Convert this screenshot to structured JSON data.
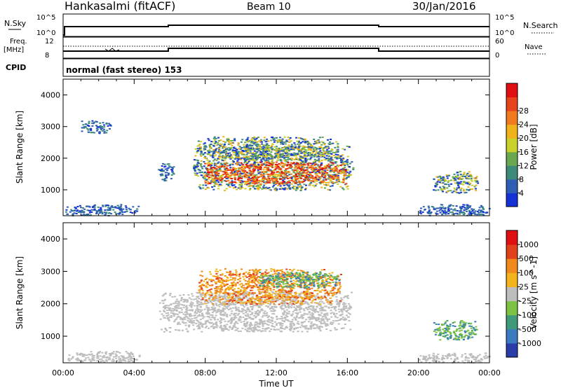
{
  "header": {
    "station": "Hankasalmi (fitACF)",
    "beam": "Beam 10",
    "date": "30/Jan/2016"
  },
  "sky_panel": {
    "left_label": "N.Sky",
    "left_ticks": [
      "10^5",
      "10^0"
    ],
    "right_ticks": [
      "10^5",
      "10^0"
    ],
    "right_label": "N.Search"
  },
  "freq_panel": {
    "left_label_1": "Freq.",
    "left_label_2": "[MHz]",
    "left_ticks": [
      "12",
      "8"
    ],
    "right_ticks": [
      "60",
      "0"
    ],
    "right_label": "Nave"
  },
  "cpid_panel": {
    "label": "CPID",
    "mode_text": "normal (fast stereo) 153"
  },
  "chart_data": [
    {
      "type": "heatmap",
      "quantity": "Power",
      "ylabel": "Slant Range [km]",
      "xlabel": "Time UT",
      "x_ticks": [
        "00:00",
        "04:00",
        "08:00",
        "12:00",
        "16:00",
        "20:00",
        "00:00"
      ],
      "xlim_hours": [
        0,
        24
      ],
      "ylim_km": [
        180,
        4500
      ],
      "y_ticks": [
        1000,
        2000,
        3000,
        4000
      ],
      "colorbar": {
        "label": "Power [dB]",
        "tick_labels": [
          "4",
          "8",
          "12",
          "16",
          "20",
          "24",
          "28"
        ],
        "colors": [
          "#1432d6",
          "#2f5fb4",
          "#3b8a7a",
          "#6aa84f",
          "#c8d22a",
          "#f0b21a",
          "#f07a1e",
          "#e8441c",
          "#e01010"
        ]
      },
      "regions": [
        {
          "t0": 7.3,
          "t1": 16.3,
          "r0": 1000,
          "r1": 2400,
          "level": "mid"
        },
        {
          "t0": 7.9,
          "t1": 15.9,
          "r0": 1200,
          "r1": 1900,
          "level": "high"
        },
        {
          "t0": 7.5,
          "t1": 15.5,
          "r0": 1950,
          "r1": 2700,
          "level": "mid"
        },
        {
          "t0": 5.3,
          "t1": 6.2,
          "r0": 1300,
          "r1": 1850,
          "level": "low"
        },
        {
          "t0": 0.1,
          "t1": 4.2,
          "r0": 200,
          "r1": 550,
          "level": "low"
        },
        {
          "t0": 1.0,
          "t1": 2.7,
          "r0": 2800,
          "r1": 3200,
          "level": "low"
        },
        {
          "t0": 20.8,
          "t1": 23.3,
          "r0": 900,
          "r1": 1600,
          "level": "mid"
        },
        {
          "t0": 20.0,
          "t1": 24.0,
          "r0": 200,
          "r1": 550,
          "level": "low"
        }
      ]
    },
    {
      "type": "heatmap",
      "quantity": "Velocity",
      "ylabel": "Slant Range [km]",
      "xlabel": "Time UT",
      "x_ticks": [
        "00:00",
        "04:00",
        "08:00",
        "12:00",
        "16:00",
        "20:00",
        "00:00"
      ],
      "xlim_hours": [
        0,
        24
      ],
      "ylim_km": [
        180,
        4500
      ],
      "y_ticks": [
        1000,
        2000,
        3000,
        4000
      ],
      "colorbar": {
        "label": "Velocity [m s^-1]",
        "tick_labels": [
          "1000",
          "500",
          "100",
          "25",
          "-25",
          "-100",
          "-500",
          "-1000"
        ],
        "colors": [
          "#2a3ca8",
          "#3a7bc0",
          "#3f9a7a",
          "#7cc243",
          "#bdbdbd",
          "#f2b31c",
          "#f08a1c",
          "#e0401c",
          "#e01010"
        ]
      },
      "regions": [
        {
          "t0": 5.4,
          "t1": 16.2,
          "r0": 1150,
          "r1": 2400,
          "level": "ground"
        },
        {
          "t0": 7.6,
          "t1": 15.6,
          "r0": 2000,
          "r1": 3100,
          "level": "neg"
        },
        {
          "t0": 11.0,
          "t1": 15.5,
          "r0": 2500,
          "r1": 3000,
          "level": "pos"
        },
        {
          "t0": 0.2,
          "t1": 4.3,
          "r0": 200,
          "r1": 550,
          "level": "ground"
        },
        {
          "t0": 20.8,
          "t1": 23.3,
          "r0": 900,
          "r1": 1500,
          "level": "pos"
        },
        {
          "t0": 20.0,
          "t1": 24.0,
          "r0": 200,
          "r1": 500,
          "level": "ground"
        }
      ]
    }
  ]
}
